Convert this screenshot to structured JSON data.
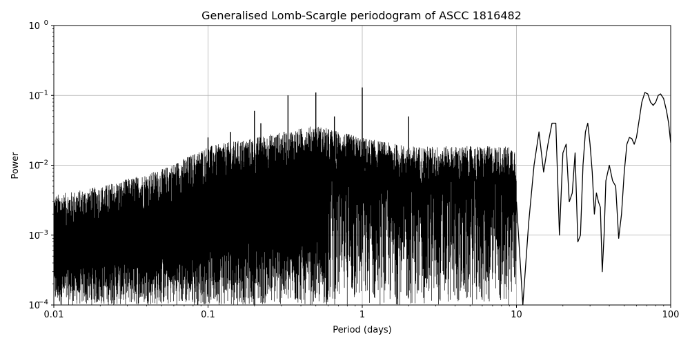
{
  "chart_data": {
    "type": "line",
    "title": "Generalised Lomb-Scargle periodogram of ASCC 1816482",
    "xlabel": "Period (days)",
    "ylabel": "Power",
    "x_scale": "log",
    "y_scale": "log",
    "xlim": [
      0.01,
      100
    ],
    "ylim": [
      0.0001,
      1
    ],
    "x_ticks": [
      {
        "value": 0.01,
        "label": "0.01"
      },
      {
        "value": 0.1,
        "label": "0.1"
      },
      {
        "value": 1,
        "label": "1"
      },
      {
        "value": 10,
        "label": "10"
      },
      {
        "value": 100,
        "label": "100"
      }
    ],
    "y_ticks": [
      {
        "value": 0.0001,
        "base": "10",
        "exp": "−4"
      },
      {
        "value": 0.001,
        "base": "10",
        "exp": "−3"
      },
      {
        "value": 0.01,
        "base": "10",
        "exp": "−2"
      },
      {
        "value": 0.1,
        "base": "10",
        "exp": "−1"
      },
      {
        "value": 1,
        "base": "10",
        "exp": "0"
      }
    ],
    "grid": true,
    "line_color": "#000000",
    "series": [
      {
        "x": [
          10,
          11,
          12,
          13,
          14,
          15,
          16,
          17,
          18,
          19,
          20,
          21,
          22,
          23,
          24,
          25,
          26,
          27,
          28,
          29,
          30,
          31,
          32,
          33,
          34,
          35,
          36,
          37,
          38,
          40,
          42,
          44,
          46,
          48,
          50,
          52,
          54,
          56,
          58,
          60,
          62,
          65,
          68,
          71,
          74,
          77,
          80,
          83,
          86,
          90,
          94,
          97,
          100
        ],
        "y": [
          0.003,
          0.0001,
          0.0015,
          0.01,
          0.03,
          0.008,
          0.02,
          0.04,
          0.04,
          0.001,
          0.015,
          0.02,
          0.003,
          0.004,
          0.015,
          0.0008,
          0.001,
          0.01,
          0.03,
          0.04,
          0.02,
          0.008,
          0.002,
          0.004,
          0.003,
          0.0025,
          0.0003,
          0.001,
          0.006,
          0.01,
          0.006,
          0.005,
          0.0009,
          0.002,
          0.008,
          0.02,
          0.025,
          0.024,
          0.02,
          0.025,
          0.04,
          0.08,
          0.11,
          0.105,
          0.08,
          0.072,
          0.08,
          0.1,
          0.105,
          0.09,
          0.06,
          0.04,
          0.021
        ]
      }
    ],
    "noise_envelope": [
      {
        "x": 0.01,
        "y": 0.003
      },
      {
        "x": 0.02,
        "y": 0.004
      },
      {
        "x": 0.05,
        "y": 0.007
      },
      {
        "x": 0.1,
        "y": 0.015
      },
      {
        "x": 0.2,
        "y": 0.02
      },
      {
        "x": 0.5,
        "y": 0.03
      },
      {
        "x": 1,
        "y": 0.02
      },
      {
        "x": 2,
        "y": 0.015
      },
      {
        "x": 5,
        "y": 0.015
      },
      {
        "x": 10,
        "y": 0.015
      }
    ],
    "peaks": [
      {
        "x": 0.1,
        "y": 0.025
      },
      {
        "x": 0.14,
        "y": 0.03
      },
      {
        "x": 0.2,
        "y": 0.06
      },
      {
        "x": 0.22,
        "y": 0.04
      },
      {
        "x": 0.33,
        "y": 0.1
      },
      {
        "x": 0.5,
        "y": 0.11
      },
      {
        "x": 0.66,
        "y": 0.05
      },
      {
        "x": 1.0,
        "y": 0.13
      },
      {
        "x": 2.0,
        "y": 0.05
      }
    ]
  }
}
